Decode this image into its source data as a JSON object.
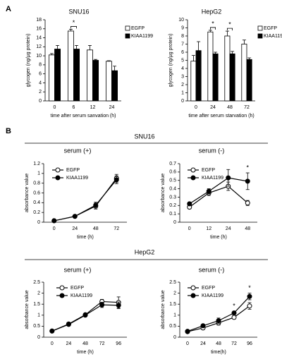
{
  "panel_labels": [
    "A",
    "B"
  ],
  "section_titles": [
    "SNU16",
    "HepG2"
  ],
  "chart_data": [
    {
      "type": "bar",
      "title": "SNU16",
      "y_label": "glycogen (ng/μg protein)",
      "x_label": "time after serum sanvation (h)",
      "categories": [
        "0",
        "6",
        "12",
        "24"
      ],
      "ylim": [
        0,
        18
      ],
      "yticks": [
        0,
        2,
        4,
        6,
        8,
        10,
        12,
        14,
        16,
        18
      ],
      "series": [
        {
          "name": "EGFP",
          "color": "#ffffff",
          "values": [
            10.2,
            15.5,
            11.3,
            8.8
          ],
          "errors": [
            0.3,
            0.4,
            1.0,
            0.1
          ]
        },
        {
          "name": "KIAA1199",
          "color": "#000000",
          "values": [
            11.5,
            11.5,
            9.0,
            6.7
          ],
          "errors": [
            0.8,
            0.8,
            0.2,
            1.0
          ]
        }
      ],
      "annotations": [
        {
          "label": "*",
          "category": "6"
        }
      ]
    },
    {
      "type": "bar",
      "title": "HepG2",
      "y_label": "glycogen (ng/μg protein)",
      "x_label": "time after serum starvation (h)",
      "categories": [
        "0",
        "24",
        "48",
        "72"
      ],
      "ylim": [
        0,
        10
      ],
      "yticks": [
        0,
        1,
        2,
        3,
        4,
        5,
        6,
        7,
        8,
        9,
        10
      ],
      "series": [
        {
          "name": "EGFP",
          "color": "#ffffff",
          "values": [
            4.9,
            8.5,
            8.0,
            7.0
          ],
          "errors": [
            0.7,
            0.2,
            0.6,
            0.5
          ]
        },
        {
          "name": "KIAA1199",
          "color": "#000000",
          "values": [
            6.2,
            5.8,
            5.8,
            5.1
          ],
          "errors": [
            1.1,
            0.2,
            0.3,
            0.2
          ]
        }
      ],
      "annotations": [
        {
          "label": "*",
          "category": "24"
        },
        {
          "label": "*",
          "category": "48"
        }
      ]
    },
    {
      "type": "line",
      "title": "serum (+)",
      "y_label": "absorbance value",
      "x_label": "time (h)",
      "categories": [
        "0",
        "24",
        "48",
        "72"
      ],
      "ylim": [
        0,
        1.2
      ],
      "yticks": [
        0,
        0.2,
        0.4,
        0.6,
        0.8,
        1,
        1.2
      ],
      "series": [
        {
          "name": "EGFP",
          "color": "#ffffff",
          "values": [
            0.03,
            0.12,
            0.33,
            0.9
          ],
          "errors": [
            0.01,
            0.02,
            0.06,
            0.08
          ]
        },
        {
          "name": "KIAA1199",
          "color": "#000000",
          "values": [
            0.03,
            0.12,
            0.35,
            0.87
          ],
          "errors": [
            0.01,
            0.02,
            0.06,
            0.08
          ]
        }
      ],
      "annotations": []
    },
    {
      "type": "line",
      "title": "serum (-)",
      "y_label": "absorbance value",
      "x_label": "time (h)",
      "categories": [
        "0",
        "12",
        "24",
        "48"
      ],
      "ylim": [
        0,
        0.7
      ],
      "yticks": [
        0,
        0.1,
        0.2,
        0.3,
        0.4,
        0.5,
        0.6,
        0.7
      ],
      "series": [
        {
          "name": "EGFP",
          "color": "#ffffff",
          "values": [
            0.18,
            0.35,
            0.43,
            0.23
          ],
          "errors": [
            0.02,
            0.03,
            0.05,
            0.03
          ]
        },
        {
          "name": "KIAA1199",
          "color": "#000000",
          "values": [
            0.22,
            0.37,
            0.53,
            0.49
          ],
          "errors": [
            0.02,
            0.03,
            0.1,
            0.1
          ]
        }
      ],
      "annotations": [
        {
          "label": "*",
          "category": "48"
        }
      ]
    },
    {
      "type": "line",
      "title": "serum (+)",
      "y_label": "absorbance value",
      "x_label": "time (h)",
      "categories": [
        "0",
        "24",
        "48",
        "72",
        "96"
      ],
      "ylim": [
        0,
        2.5
      ],
      "yticks": [
        0,
        0.5,
        1,
        1.5,
        2,
        2.5
      ],
      "series": [
        {
          "name": "EGFP",
          "color": "#ffffff",
          "values": [
            0.28,
            0.6,
            1.02,
            1.62,
            1.58
          ],
          "errors": [
            0.03,
            0.05,
            0.06,
            0.1,
            0.25
          ]
        },
        {
          "name": "KIAA1199",
          "color": "#000000",
          "values": [
            0.28,
            0.58,
            1.0,
            1.47,
            1.45
          ],
          "errors": [
            0.03,
            0.05,
            0.06,
            0.12,
            0.15
          ]
        }
      ],
      "annotations": []
    },
    {
      "type": "line",
      "title": "serum (-)",
      "y_label": "absorbance value",
      "x_label": "time(h)",
      "categories": [
        "0",
        "24",
        "48",
        "72",
        "96"
      ],
      "ylim": [
        0,
        2.5
      ],
      "yticks": [
        0,
        0.5,
        1,
        1.5,
        2,
        2.5
      ],
      "series": [
        {
          "name": "EGFP",
          "color": "#ffffff",
          "values": [
            0.25,
            0.42,
            0.65,
            0.9,
            1.42
          ],
          "errors": [
            0.03,
            0.06,
            0.1,
            0.08,
            0.15
          ]
        },
        {
          "name": "KIAA1199",
          "color": "#000000",
          "values": [
            0.27,
            0.52,
            0.75,
            1.1,
            1.85
          ],
          "errors": [
            0.03,
            0.06,
            0.12,
            0.08,
            0.15
          ]
        }
      ],
      "annotations": [
        {
          "label": "*",
          "category": "72"
        },
        {
          "label": "*",
          "category": "96"
        }
      ]
    }
  ]
}
